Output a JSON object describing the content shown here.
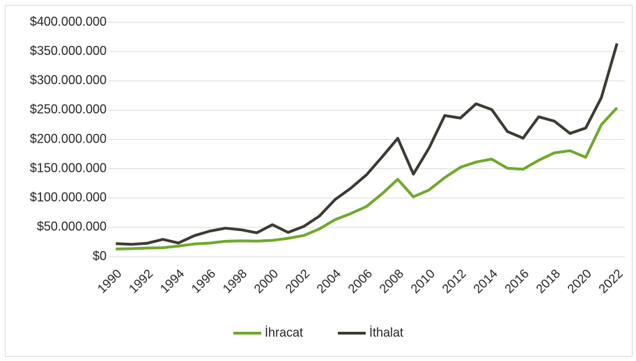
{
  "chart_data": {
    "type": "line",
    "x": [
      1990,
      1991,
      1992,
      1993,
      1994,
      1995,
      1996,
      1997,
      1998,
      1999,
      2000,
      2001,
      2002,
      2003,
      2004,
      2005,
      2006,
      2007,
      2008,
      2009,
      2010,
      2011,
      2012,
      2013,
      2014,
      2015,
      2016,
      2017,
      2018,
      2019,
      2020,
      2021,
      2022
    ],
    "series": [
      {
        "name": "İhracat",
        "color": "#70a82a",
        "values": [
          13000000,
          13600000,
          14700000,
          15300000,
          18100000,
          21600000,
          23200000,
          26300000,
          27000000,
          26600000,
          27800000,
          31300000,
          36100000,
          47300000,
          63200000,
          73500000,
          85500000,
          107300000,
          132000000,
          102100000,
          113900000,
          134900000,
          152500000,
          161500000,
          166500000,
          150900000,
          149200000,
          164500000,
          177200000,
          180800000,
          169600000,
          225200000,
          254200000
        ]
      },
      {
        "name": "İthalat",
        "color": "#3b3b33",
        "values": [
          22300000,
          21000000,
          22900000,
          29400000,
          23300000,
          35700000,
          43600000,
          48600000,
          45900000,
          40700000,
          54500000,
          41400000,
          51600000,
          69300000,
          97500000,
          116800000,
          139600000,
          170100000,
          202000000,
          140900000,
          185500000,
          240800000,
          236500000,
          260800000,
          251100000,
          213600000,
          202200000,
          238700000,
          231200000,
          210300000,
          219500000,
          271400000,
          363700000
        ]
      }
    ],
    "xlim": [
      1989.5,
      2022.5
    ],
    "xticks": [
      1990,
      1992,
      1994,
      1996,
      1998,
      2000,
      2002,
      2004,
      2006,
      2008,
      2010,
      2012,
      2014,
      2016,
      2018,
      2020,
      2022
    ],
    "ylim": [
      0,
      400000000
    ],
    "yticks": [
      {
        "value": 0,
        "label": "$0"
      },
      {
        "value": 50000000,
        "label": "$50.000.000"
      },
      {
        "value": 100000000,
        "label": "$100.000.000"
      },
      {
        "value": 150000000,
        "label": "$150.000.000"
      },
      {
        "value": 200000000,
        "label": "$200.000.000"
      },
      {
        "value": 250000000,
        "label": "$250.000.000"
      },
      {
        "value": 300000000,
        "label": "$300.000.000"
      },
      {
        "value": 350000000,
        "label": "$350.000.000"
      },
      {
        "value": 400000000,
        "label": "$400.000.000"
      }
    ],
    "grid": true,
    "legend": "bottom"
  }
}
